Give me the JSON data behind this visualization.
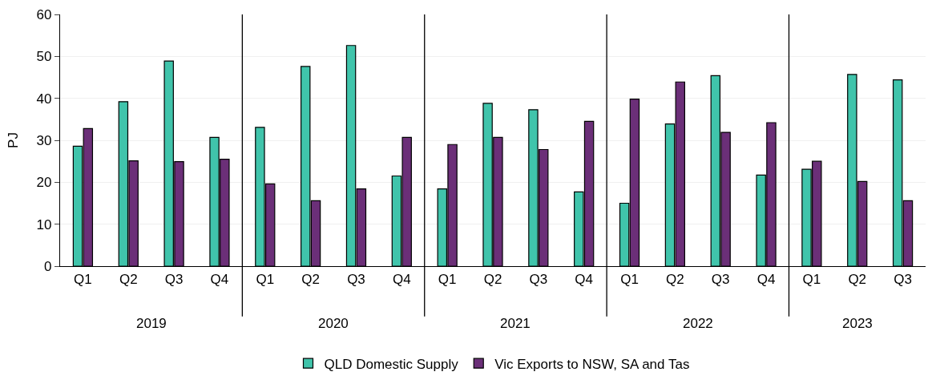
{
  "chart_data": {
    "type": "bar",
    "ylabel": "PJ",
    "categories": [
      "Q1",
      "Q2",
      "Q3",
      "Q4",
      "Q1",
      "Q2",
      "Q3",
      "Q4",
      "Q1",
      "Q2",
      "Q3",
      "Q4",
      "Q1",
      "Q2",
      "Q3",
      "Q4",
      "Q1",
      "Q2",
      "Q3"
    ],
    "annotations": [
      "2019",
      "2020",
      "2021",
      "2022",
      "2023"
    ],
    "series": [
      {
        "name": "QLD Domestic Supply",
        "color": "#40c4ab",
        "values": [
          28.6,
          39.2,
          48.9,
          30.7,
          33.1,
          47.6,
          52.6,
          21.5,
          18.4,
          38.8,
          37.3,
          17.7,
          15.0,
          33.9,
          45.4,
          21.7,
          23.1,
          45.7,
          44.4
        ]
      },
      {
        "name": "Vic Exports to NSW, SA and Tas",
        "color": "#6b2f78",
        "values": [
          32.8,
          25.1,
          24.9,
          25.5,
          19.6,
          15.6,
          18.4,
          30.7,
          29.0,
          30.7,
          27.8,
          34.5,
          39.8,
          43.9,
          31.9,
          34.2,
          25.0,
          20.2,
          15.6
        ]
      }
    ],
    "ylim": [
      0,
      60
    ],
    "yticks": [
      0,
      10,
      20,
      30,
      40,
      50,
      60
    ],
    "grid": "y",
    "legend": "bottom"
  }
}
